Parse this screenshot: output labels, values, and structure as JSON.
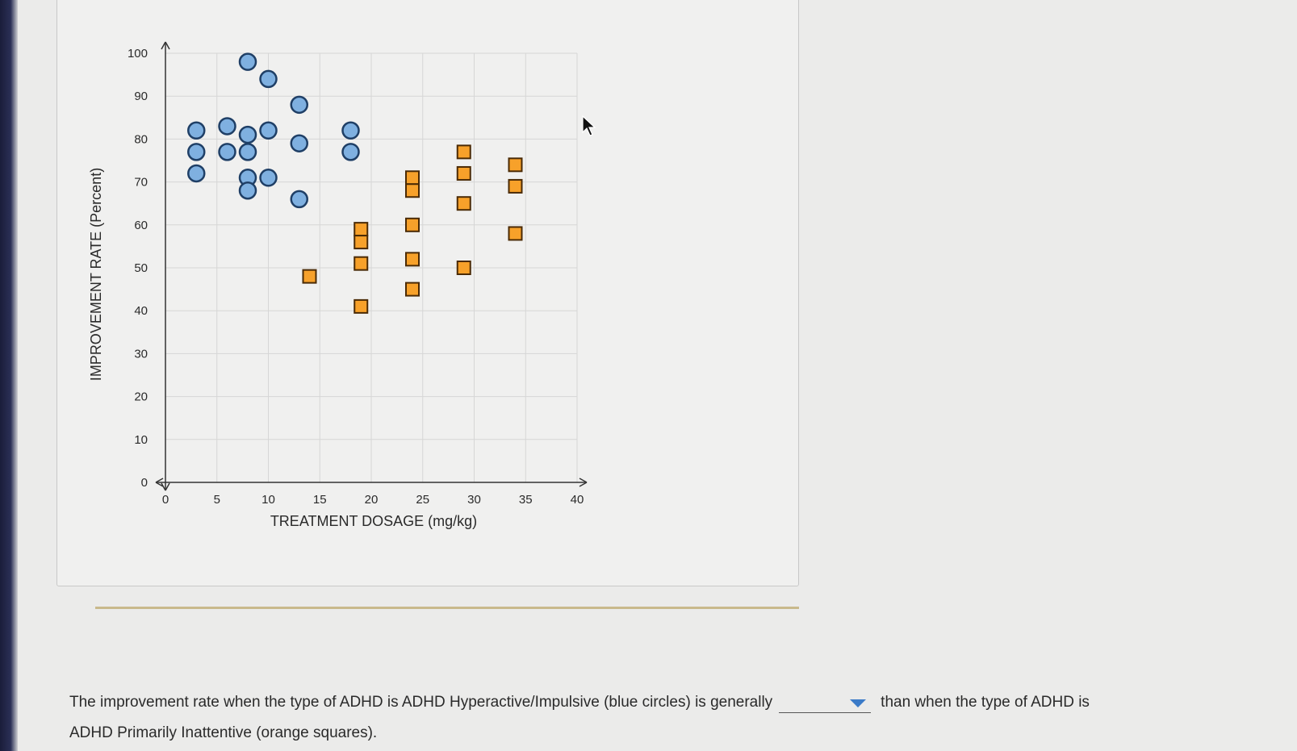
{
  "chart_data": {
    "type": "scatter",
    "title": "",
    "xlabel": "TREATMENT DOSAGE (mg/kg)",
    "ylabel": "IMPROVEMENT RATE (Percent)",
    "xlim": [
      0,
      40
    ],
    "ylim": [
      0,
      100
    ],
    "x_ticks": [
      0,
      5,
      10,
      15,
      20,
      25,
      30,
      35,
      40
    ],
    "y_ticks": [
      0,
      10,
      20,
      30,
      40,
      50,
      60,
      70,
      80,
      90,
      100
    ],
    "grid": true,
    "series": [
      {
        "name": "ADHD Hyperactive/Impulsive",
        "marker": "circle",
        "color": "#7fb0e0",
        "points": [
          [
            3,
            82
          ],
          [
            3,
            77
          ],
          [
            3,
            72
          ],
          [
            6,
            83
          ],
          [
            6,
            77
          ],
          [
            8,
            98
          ],
          [
            8,
            81
          ],
          [
            8,
            77
          ],
          [
            8,
            71
          ],
          [
            8,
            68
          ],
          [
            10,
            94
          ],
          [
            10,
            82
          ],
          [
            10,
            71
          ],
          [
            13,
            88
          ],
          [
            13,
            79
          ],
          [
            13,
            66
          ],
          [
            18,
            82
          ],
          [
            18,
            77
          ]
        ]
      },
      {
        "name": "ADHD Primarily Inattentive",
        "marker": "square",
        "color": "#f7a12a",
        "points": [
          [
            14,
            48
          ],
          [
            19,
            59
          ],
          [
            19,
            56
          ],
          [
            19,
            51
          ],
          [
            19,
            41
          ],
          [
            24,
            71
          ],
          [
            24,
            68
          ],
          [
            24,
            60
          ],
          [
            24,
            52
          ],
          [
            24,
            45
          ],
          [
            29,
            77
          ],
          [
            29,
            72
          ],
          [
            29,
            65
          ],
          [
            29,
            50
          ],
          [
            34,
            74
          ],
          [
            34,
            69
          ],
          [
            34,
            58
          ]
        ]
      }
    ]
  },
  "question": {
    "part1": "The improvement rate when the type of ADHD is ADHD Hyperactive/Impulsive (blue circles) is generally",
    "dropdown_value": "",
    "part2": "than when the type of ADHD is",
    "part3": "ADHD Primarily Inattentive (orange squares)."
  },
  "colors": {
    "circle_fill": "#7fb0e0",
    "circle_stroke": "#1f3f66",
    "square_fill": "#f7a12a",
    "square_stroke": "#4a2a05",
    "grid": "#d6d6d6",
    "axis": "#333333"
  }
}
